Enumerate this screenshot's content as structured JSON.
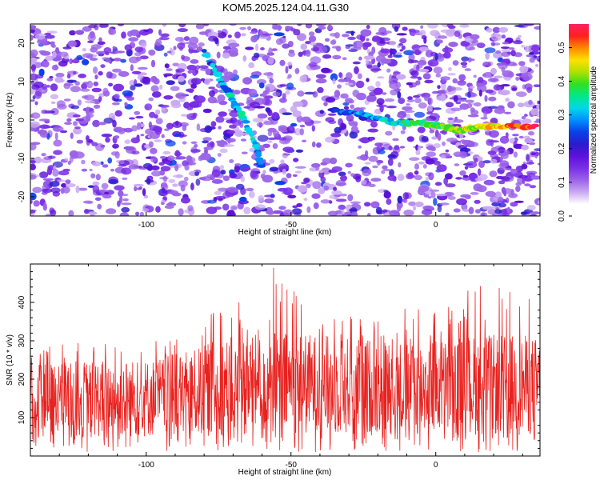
{
  "title": "KOM5.2025.124.04.11.G30",
  "colors": {
    "axis": "#000000",
    "snr_line": "#e8221f",
    "spectrogram_background": "#ffffff"
  },
  "chart_data": [
    {
      "type": "heatmap",
      "name": "spectrogram",
      "xlabel": "Height of straight line (km)",
      "ylabel": "Frequency (Hz)",
      "xlim": [
        -140,
        36
      ],
      "ylim": [
        -25,
        25
      ],
      "xticks": [
        -100,
        -50,
        0
      ],
      "yticks": [
        -20,
        -10,
        0,
        10,
        20
      ],
      "colorbar": {
        "label": "Normalized spectral amplitude",
        "range": [
          0,
          0.57
        ],
        "ticks": [
          0.0,
          0.1,
          0.2,
          0.3,
          0.4,
          0.5
        ],
        "colormap": [
          "#ffffff",
          "#ffffff",
          "#c9a8f2",
          "#9b63e8",
          "#7a2fe6",
          "#5d11d9",
          "#2a1ccc",
          "#0a40e8",
          "#0090ff",
          "#00d8e8",
          "#00e888",
          "#30e020",
          "#b0e000",
          "#ffe000",
          "#ff8800",
          "#ff2020",
          "#ff2060"
        ]
      },
      "signal_tracks": [
        {
          "name": "main-trace",
          "points": [
            [
              -36,
              2.5
            ],
            [
              -25,
              1.5
            ],
            [
              -15,
              -0.6
            ],
            [
              -5,
              -0.9
            ],
            [
              2,
              -1.6
            ],
            [
              8,
              -2.8
            ],
            [
              15,
              -1.6
            ],
            [
              22,
              -1.6
            ],
            [
              35,
              -1.7
            ]
          ]
        },
        {
          "name": "arc-trace",
          "points": [
            [
              -80,
              18
            ],
            [
              -74,
              10
            ],
            [
              -70,
              5
            ],
            [
              -66,
              0
            ],
            [
              -62,
              -7
            ],
            [
              -60,
              -13
            ]
          ]
        }
      ]
    },
    {
      "type": "line",
      "name": "snr",
      "xlabel": "Height of straight line (km)",
      "ylabel": "SNR (10 * v/v)",
      "xlim": [
        -140,
        36
      ],
      "ylim": [
        0,
        500
      ],
      "xticks": [
        -100,
        -50,
        0
      ],
      "yticks": [
        100,
        200,
        300,
        400
      ],
      "series": [
        {
          "name": "SNR",
          "envelope": [
            {
              "x": -140,
              "mean": 140,
              "max": 280
            },
            {
              "x": -120,
              "mean": 150,
              "max": 300
            },
            {
              "x": -100,
              "mean": 150,
              "max": 300
            },
            {
              "x": -85,
              "mean": 160,
              "max": 330
            },
            {
              "x": -75,
              "mean": 180,
              "max": 400
            },
            {
              "x": -60,
              "mean": 185,
              "max": 420
            },
            {
              "x": -55,
              "mean": 190,
              "max": 490
            },
            {
              "x": -40,
              "mean": 185,
              "max": 400
            },
            {
              "x": -20,
              "mean": 180,
              "max": 380
            },
            {
              "x": 0,
              "mean": 180,
              "max": 400
            },
            {
              "x": 15,
              "mean": 185,
              "max": 450
            },
            {
              "x": 30,
              "mean": 185,
              "max": 430
            },
            {
              "x": 36,
              "mean": 180,
              "max": 400
            }
          ],
          "peak": {
            "x": -56,
            "y": 490
          }
        }
      ]
    }
  ]
}
